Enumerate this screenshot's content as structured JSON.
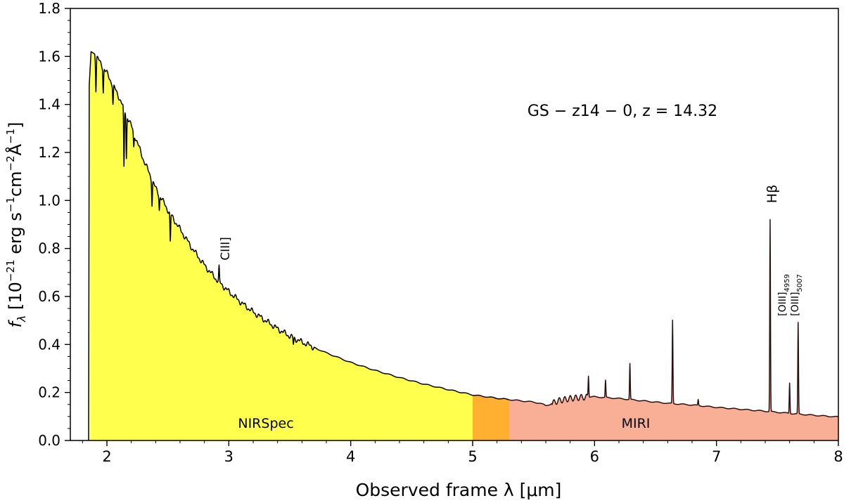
{
  "chart_data": {
    "type": "area",
    "object_label": "GS − z14 − 0, z = 14.32",
    "xlabel": "Observed frame λ [μm]",
    "ylabel": "f_λ [10^−21 erg s^−1 cm^−2 Å^−1]",
    "xlim": [
      1.7,
      8.0
    ],
    "ylim": [
      0.0,
      1.8
    ],
    "x_ticks": [
      2,
      3,
      4,
      5,
      6,
      7,
      8
    ],
    "x_tick_labels": [
      "2",
      "3",
      "4",
      "5",
      "6",
      "7",
      "8"
    ],
    "y_ticks": [
      0.0,
      0.2,
      0.4,
      0.6,
      0.8,
      1.0,
      1.2,
      1.4,
      1.6,
      1.8
    ],
    "y_tick_labels": [
      "0.0",
      "0.2",
      "0.4",
      "0.6",
      "0.8",
      "1.0",
      "1.2",
      "1.4",
      "1.6",
      "1.8"
    ],
    "grid": false,
    "regions": [
      {
        "name": "NIRSpec",
        "x_start": 1.86,
        "x_end": 5.0,
        "color": "#ffff4d"
      },
      {
        "name": "overlap",
        "x_start": 5.0,
        "x_end": 5.3,
        "color": "#ffb030"
      },
      {
        "name": "MIRI",
        "x_start": 5.3,
        "x_end": 8.0,
        "color": "#f9af96"
      }
    ],
    "continuum": {
      "x": [
        1.85,
        1.855,
        1.87,
        1.9,
        1.95,
        2.0,
        2.1,
        2.2,
        2.3,
        2.4,
        2.5,
        2.6,
        2.7,
        2.8,
        2.9,
        3.0,
        3.1,
        3.2,
        3.3,
        3.4,
        3.5,
        3.6,
        3.8,
        4.0,
        4.2,
        4.4,
        4.6,
        4.8,
        5.0,
        5.2,
        5.4,
        5.5,
        5.55,
        5.58,
        5.6,
        5.63,
        5.7,
        5.8,
        5.9,
        6.0,
        6.2,
        6.4,
        6.6,
        6.8,
        7.0,
        7.2,
        7.4,
        7.6,
        7.8,
        8.0
      ],
      "y": [
        0.0,
        1.48,
        1.62,
        1.61,
        1.57,
        1.53,
        1.43,
        1.31,
        1.17,
        1.05,
        0.96,
        0.88,
        0.8,
        0.73,
        0.67,
        0.62,
        0.575,
        0.535,
        0.5,
        0.465,
        0.435,
        0.41,
        0.365,
        0.325,
        0.292,
        0.262,
        0.235,
        0.212,
        0.19,
        0.176,
        0.165,
        0.16,
        0.155,
        0.15,
        0.145,
        0.15,
        0.165,
        0.175,
        0.18,
        0.182,
        0.175,
        0.165,
        0.155,
        0.148,
        0.138,
        0.13,
        0.122,
        0.113,
        0.105,
        0.098
      ]
    },
    "absorption_lines": [
      {
        "x": 1.91,
        "depth": 0.14
      },
      {
        "x": 1.97,
        "depth": 0.1
      },
      {
        "x": 2.05,
        "depth": 0.08
      },
      {
        "x": 2.14,
        "depth": 0.25
      },
      {
        "x": 2.16,
        "depth": 0.18
      },
      {
        "x": 2.22,
        "depth": 0.06
      },
      {
        "x": 2.37,
        "depth": 0.1
      },
      {
        "x": 2.43,
        "depth": 0.06
      },
      {
        "x": 2.52,
        "depth": 0.12
      },
      {
        "x": 3.53,
        "depth": 0.03
      }
    ],
    "emission_lines": [
      {
        "x": 2.92,
        "peak": 0.72,
        "label": "CIII]"
      },
      {
        "x": 5.95,
        "peak": 0.27
      },
      {
        "x": 6.09,
        "peak": 0.25
      },
      {
        "x": 6.29,
        "peak": 0.32
      },
      {
        "x": 6.64,
        "peak": 0.5
      },
      {
        "x": 6.85,
        "peak": 0.17
      },
      {
        "x": 7.44,
        "peak": 0.92,
        "label": "Hβ"
      },
      {
        "x": 7.6,
        "peak": 0.24
      },
      {
        "x": 7.67,
        "peak": 0.49
      }
    ],
    "oiii_label": {
      "line_1": "[OIII]",
      "sub_1": "4959",
      "line_2": "[OIII]",
      "sub_2": "5007"
    }
  }
}
